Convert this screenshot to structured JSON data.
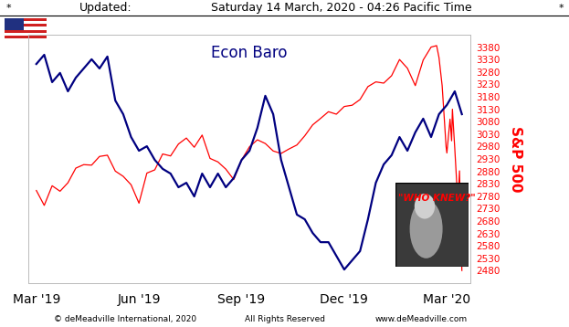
{
  "header": [
    "*",
    "Updated:",
    "Saturday 14 March, 2020 - 04:26 Pacific Time",
    "*"
  ],
  "footer": [
    "© deMeadville International, 2020",
    "All Rights Reserved",
    "www.deMeadville.com"
  ],
  "chart_data": {
    "type": "line",
    "title": "Econ Baro",
    "y2_label": "S&P 500",
    "annotation": "\"WHO KNEW?\"",
    "xlim": [
      -1,
      55
    ],
    "xticks": [
      {
        "value": 0,
        "label": "Mar '19"
      },
      {
        "value": 13,
        "label": "Jun '19"
      },
      {
        "value": 26,
        "label": "Sep '19"
      },
      {
        "value": 39,
        "label": "Dec '19"
      },
      {
        "value": 52,
        "label": "Mar '20"
      }
    ],
    "ylim": [
      0,
      100
    ],
    "yticks": [],
    "y2lim": [
      2430,
      3430
    ],
    "y2ticks": [
      2480,
      2530,
      2580,
      2630,
      2680,
      2730,
      2780,
      2830,
      2880,
      2930,
      2980,
      3030,
      3080,
      3130,
      3180,
      3230,
      3280,
      3330,
      3380
    ],
    "grid": false,
    "series": [
      {
        "color": "#000080",
        "axis": "y",
        "x": [
          0,
          1,
          2,
          3,
          4,
          5,
          6,
          7,
          8,
          9,
          10,
          11,
          12,
          13,
          14,
          15,
          16,
          17,
          18,
          19,
          20,
          21,
          22,
          23,
          24,
          25,
          26,
          27,
          28,
          29,
          30,
          31,
          32,
          33,
          34,
          35,
          36,
          37,
          38,
          39,
          40,
          41,
          42,
          43,
          44,
          45,
          46,
          47,
          48,
          49,
          50,
          51,
          52,
          53,
          53.9
        ],
        "values": [
          88.2,
          91.9,
          80.9,
          84.6,
          77.2,
          82.7,
          86.4,
          90.1,
          86.4,
          91.2,
          73.5,
          68.0,
          58.8,
          53.3,
          55.1,
          49.6,
          46.0,
          44.1,
          38.6,
          40.4,
          34.9,
          44.1,
          38.6,
          44.1,
          38.6,
          42.3,
          49.6,
          53.3,
          62.5,
          75.4,
          68.0,
          49.6,
          38.6,
          27.6,
          25.7,
          20.2,
          16.5,
          16.5,
          11.0,
          5.5,
          9.2,
          12.9,
          25.7,
          40.4,
          47.8,
          51.5,
          58.8,
          53.3,
          60.7,
          66.2,
          58.8,
          68.0,
          71.7,
          77.2,
          68.0
        ]
      },
      {
        "color": "#ff0000",
        "axis": "y2",
        "x": [
          0,
          1,
          2,
          3,
          4,
          5,
          6,
          7,
          8,
          9,
          10,
          11,
          12,
          13,
          14,
          15,
          16,
          17,
          18,
          19,
          20,
          21,
          22,
          23,
          24,
          25,
          26,
          27,
          28,
          29,
          30,
          31,
          32,
          33,
          34,
          35,
          36,
          37,
          38,
          39,
          40,
          41,
          42,
          43,
          44,
          45,
          46,
          47,
          48,
          49,
          50,
          50.7,
          51.0,
          51.4,
          51.6,
          51.9,
          52.0,
          52.4,
          52.6,
          52.7,
          52.9,
          53.0,
          53.4,
          53.6,
          53.7,
          53.9
        ],
        "values": [
          2803,
          2743,
          2822,
          2800,
          2834,
          2893,
          2907,
          2905,
          2940,
          2945,
          2881,
          2860,
          2826,
          2752,
          2873,
          2886,
          2950,
          2942,
          2990,
          3014,
          2977,
          3026,
          2932,
          2918,
          2889,
          2847,
          2926,
          2979,
          3007,
          2992,
          2962,
          2952,
          2970,
          2986,
          3023,
          3067,
          3093,
          3120,
          3110,
          3141,
          3146,
          3169,
          3221,
          3240,
          3235,
          3265,
          3330,
          3295,
          3225,
          3328,
          3380,
          3386,
          3338,
          3225,
          3128,
          2979,
          2954,
          3090,
          3003,
          3130,
          3024,
          2972,
          2747,
          2882,
          2741,
          2481
        ]
      }
    ]
  }
}
